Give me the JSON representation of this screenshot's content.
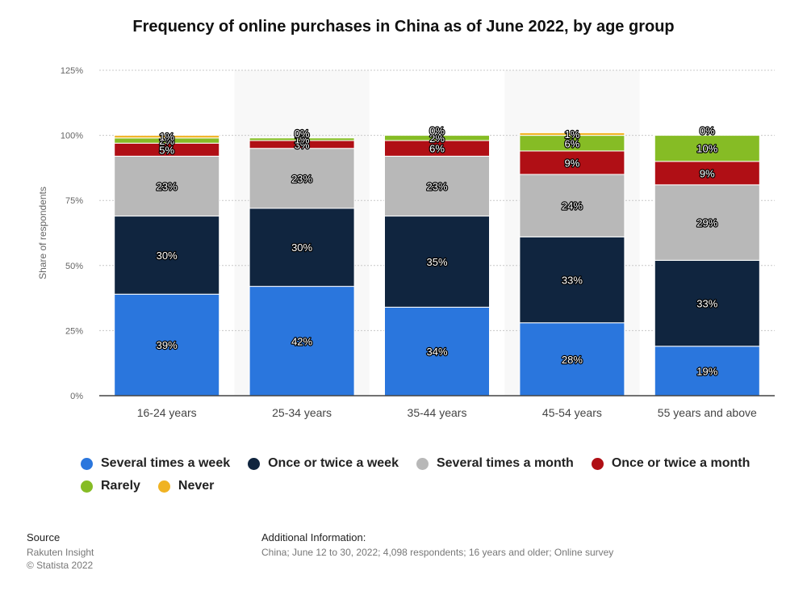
{
  "chart_data": {
    "type": "bar",
    "stacked": true,
    "title": "Frequency of online purchases in China as of June 2022, by age group",
    "xlabel": "",
    "ylabel": "Share of respondents",
    "ylim": [
      0,
      125
    ],
    "yticks": [
      0,
      25,
      50,
      75,
      100,
      125
    ],
    "ytick_labels": [
      "0%",
      "25%",
      "50%",
      "75%",
      "100%",
      "125%"
    ],
    "categories": [
      "16-24 years",
      "25-34 years",
      "35-44 years",
      "45-54 years",
      "55 years and above"
    ],
    "series": [
      {
        "name": "Several times a week",
        "color": "#2a76dd",
        "values": [
          39,
          42,
          34,
          28,
          19
        ],
        "labels": [
          "39%",
          "42%",
          "34%",
          "28%",
          "19%"
        ]
      },
      {
        "name": "Once or twice a week",
        "color": "#10253f",
        "values": [
          30,
          30,
          35,
          33,
          33
        ],
        "labels": [
          "30%",
          "30%",
          "35%",
          "33%",
          "33%"
        ]
      },
      {
        "name": "Several times a month",
        "color": "#b8b8b8",
        "values": [
          23,
          23,
          23,
          24,
          29
        ],
        "labels": [
          "23%",
          "23%",
          "23%",
          "24%",
          "29%"
        ]
      },
      {
        "name": "Once or twice a month",
        "color": "#b00f15",
        "values": [
          5,
          3,
          6,
          9,
          9
        ],
        "labels": [
          "5%",
          "3%",
          "6%",
          "9%",
          "9%"
        ]
      },
      {
        "name": "Rarely",
        "color": "#86bc25",
        "values": [
          2,
          1,
          2,
          6,
          10
        ],
        "labels": [
          "2%",
          "1%",
          "2%",
          "6%",
          "10%"
        ]
      },
      {
        "name": "Never",
        "color": "#f0b323",
        "values": [
          1,
          0,
          0,
          1,
          0
        ],
        "labels": [
          "1%",
          "0%",
          "0%",
          "1%",
          "0%"
        ]
      }
    ],
    "grid": true,
    "legend_position": "bottom"
  },
  "source": {
    "heading": "Source",
    "lines": [
      "Rakuten Insight",
      "© Statista 2022"
    ]
  },
  "additional": {
    "heading": "Additional Information:",
    "text": "China; June 12 to 30, 2022; 4,098 respondents; 16 years and older; Online survey"
  }
}
